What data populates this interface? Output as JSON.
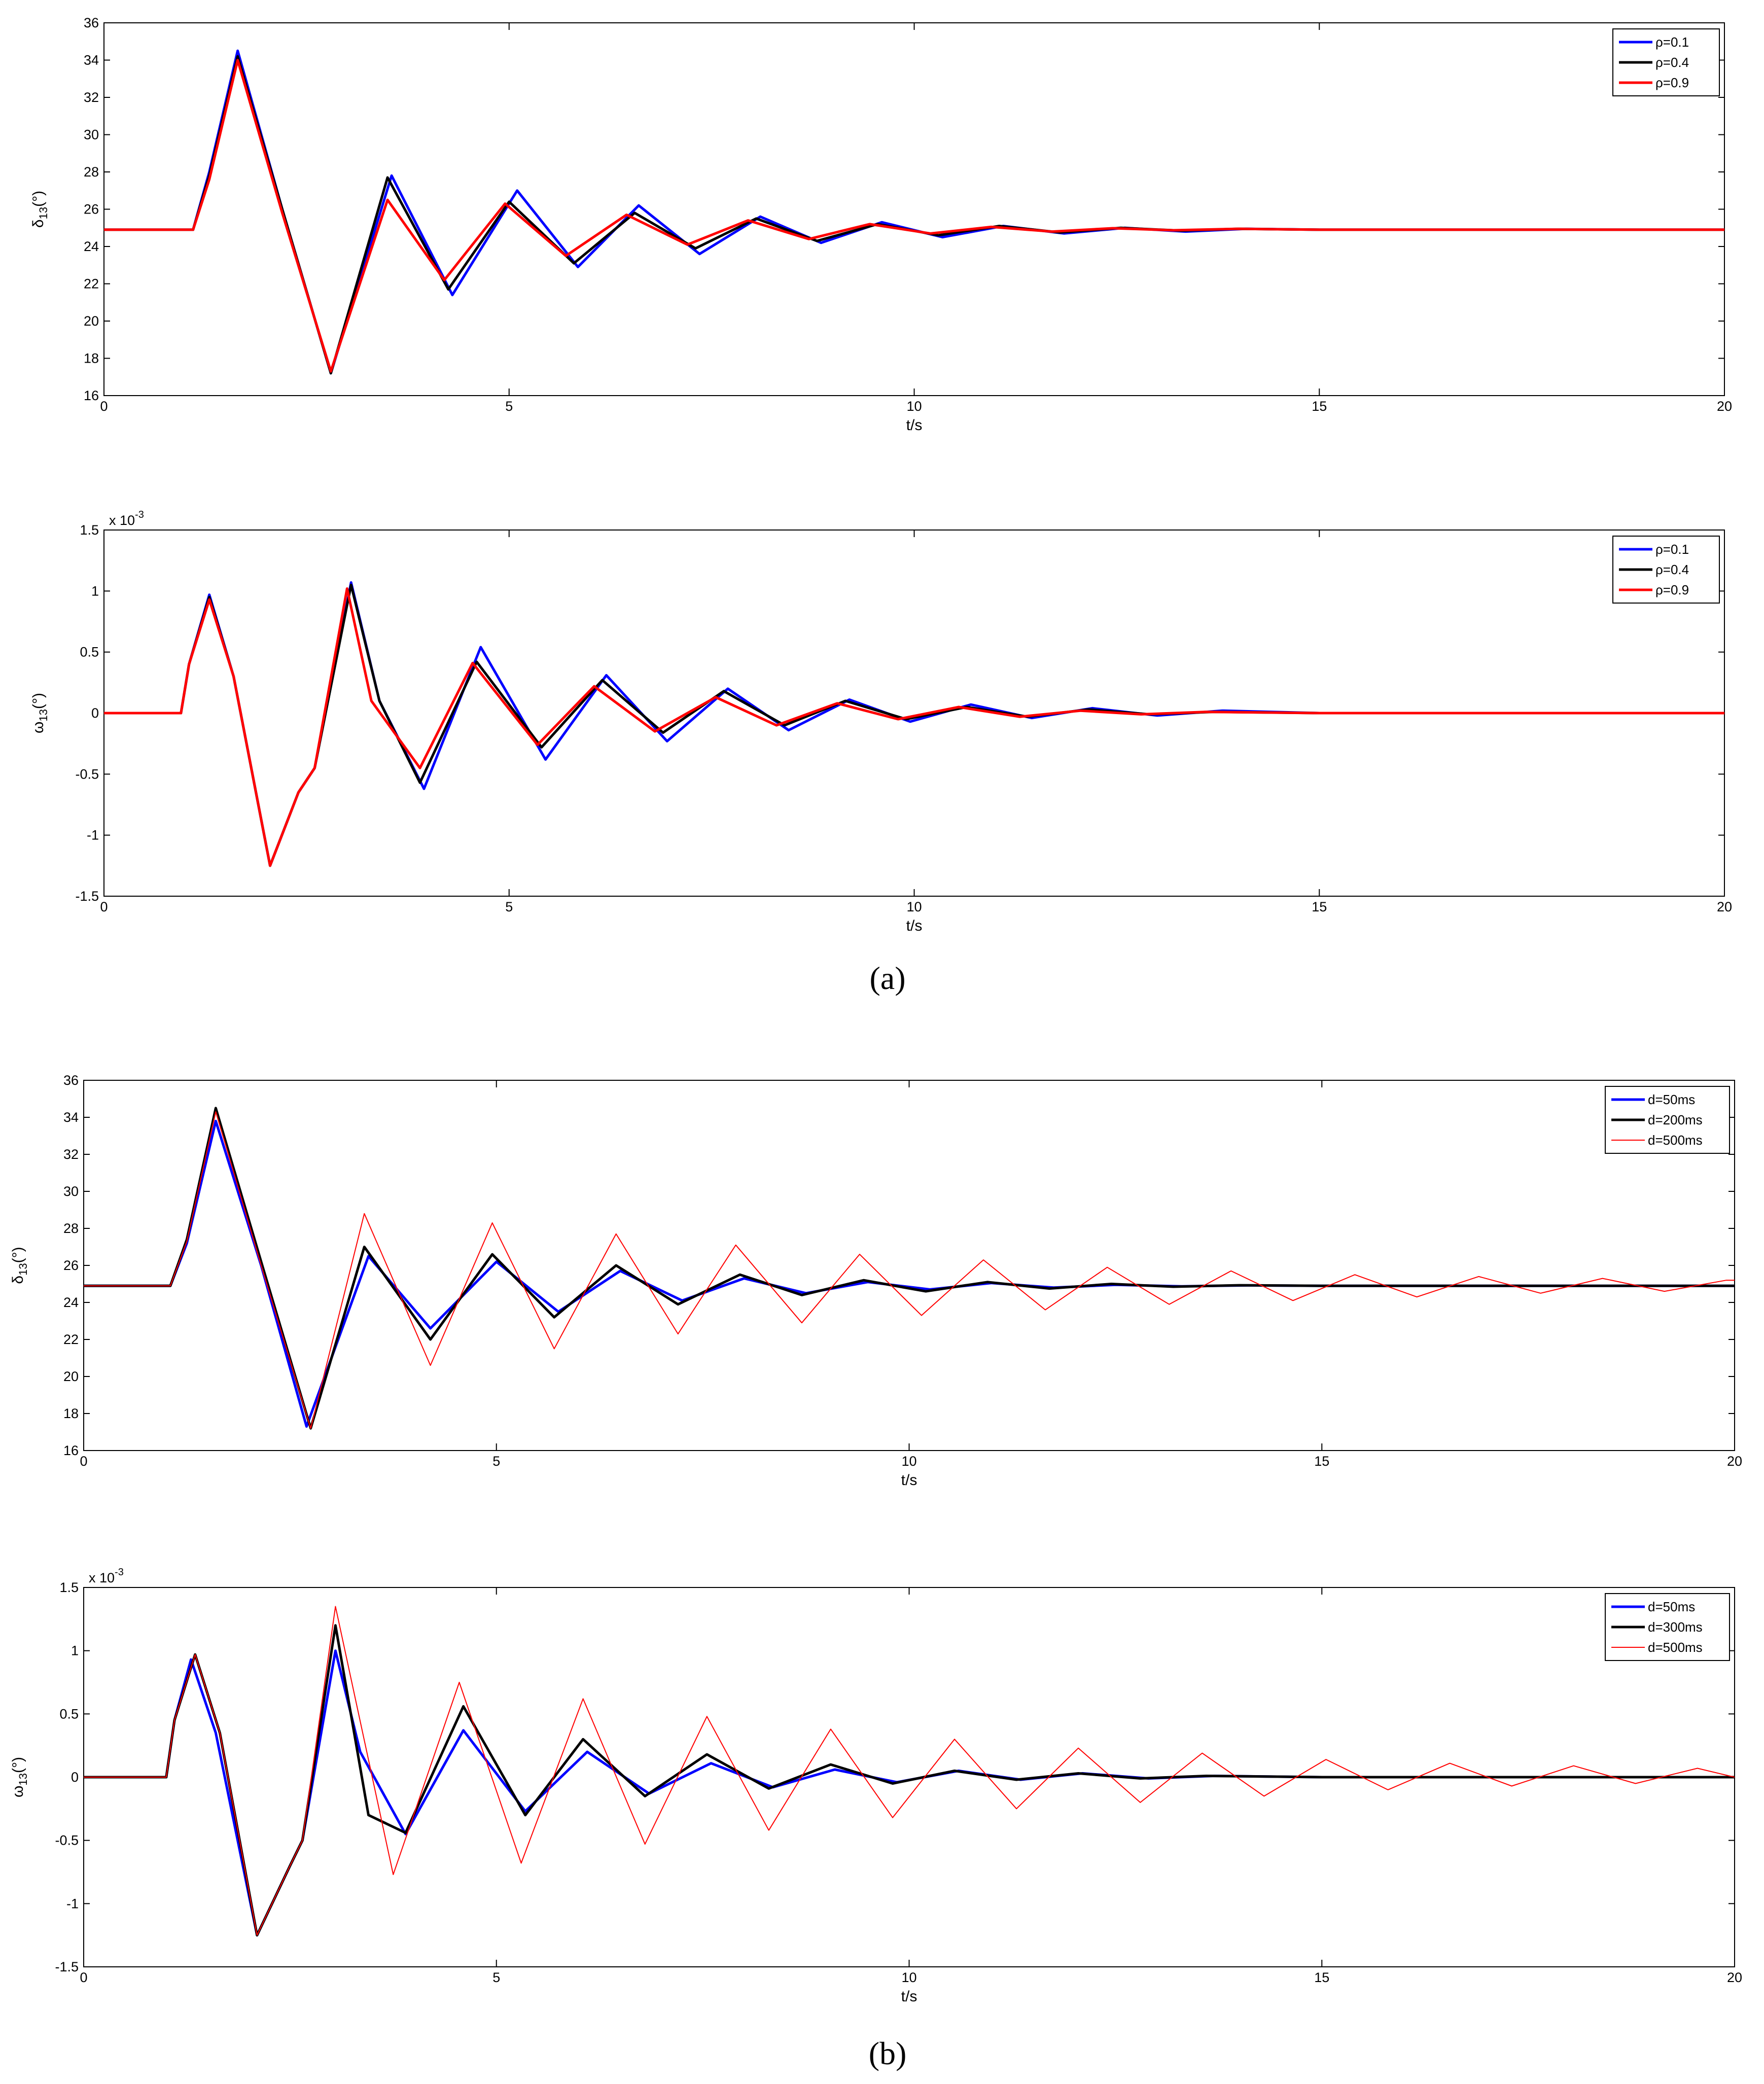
{
  "figure": {
    "label_a": "(a)",
    "label_b": "(b)"
  },
  "colors": {
    "blue": "#0000ff",
    "black": "#000000",
    "red": "#ff0000",
    "frame": "#000000",
    "bg": "#ffffff"
  },
  "chart_data": [
    {
      "id": "a1",
      "type": "line",
      "title": "",
      "xlabel": "t/s",
      "ylabel": "δ13(°)",
      "ylabel_main": "δ",
      "ylabel_sub": "13",
      "ylabel_unit": "(°)",
      "scale_note": "",
      "xlim": [
        0,
        20
      ],
      "ylim": [
        16,
        36
      ],
      "xticks": [
        0,
        5,
        10,
        15,
        20
      ],
      "xtick_labels": [
        "0",
        "5",
        "10",
        "15",
        "20"
      ],
      "yticks": [
        16,
        18,
        20,
        22,
        24,
        26,
        28,
        30,
        32,
        34,
        36
      ],
      "ytick_labels": [
        "16",
        "18",
        "20",
        "22",
        "24",
        "26",
        "28",
        "30",
        "32",
        "34",
        "36"
      ],
      "legend": "top-right",
      "series": [
        {
          "name": "ρ=0.1",
          "color": "blue",
          "style": "thick",
          "x": [
            0,
            1.1,
            1.3,
            1.65,
            2.2,
            2.8,
            3.55,
            4.3,
            5.1,
            5.85,
            6.6,
            7.35,
            8.1,
            8.85,
            9.6,
            10.35,
            11.1,
            11.85,
            12.6,
            13.35,
            14.1,
            15.0,
            20
          ],
          "y": [
            24.9,
            24.9,
            28.0,
            34.5,
            26.0,
            17.2,
            27.8,
            21.4,
            27.0,
            22.9,
            26.2,
            23.6,
            25.6,
            24.2,
            25.3,
            24.5,
            25.1,
            24.7,
            25.0,
            24.8,
            24.95,
            24.9,
            24.9
          ]
        },
        {
          "name": "ρ=0.4",
          "color": "black",
          "style": "thick",
          "x": [
            0,
            1.1,
            1.3,
            1.65,
            2.2,
            2.8,
            3.5,
            4.25,
            5.0,
            5.8,
            6.55,
            7.3,
            8.05,
            8.8,
            9.55,
            10.3,
            11.05,
            11.8,
            12.55,
            13.3,
            14.0,
            15.0,
            20
          ],
          "y": [
            24.9,
            24.9,
            27.8,
            34.2,
            26.0,
            17.2,
            27.7,
            21.7,
            26.4,
            23.1,
            25.8,
            23.9,
            25.5,
            24.3,
            25.2,
            24.6,
            25.1,
            24.75,
            25.0,
            24.85,
            24.95,
            24.9,
            24.9
          ]
        },
        {
          "name": "ρ=0.9",
          "color": "red",
          "style": "thick",
          "x": [
            0,
            1.1,
            1.3,
            1.65,
            2.2,
            2.8,
            3.5,
            4.2,
            4.95,
            5.7,
            6.45,
            7.2,
            7.95,
            8.7,
            9.45,
            10.2,
            10.95,
            11.7,
            12.45,
            13.2,
            14.0,
            15.0,
            20
          ],
          "y": [
            24.9,
            24.9,
            27.6,
            34.0,
            25.8,
            17.3,
            26.5,
            22.2,
            26.3,
            23.5,
            25.7,
            24.1,
            25.4,
            24.4,
            25.2,
            24.7,
            25.05,
            24.8,
            24.98,
            24.87,
            24.95,
            24.9,
            24.9
          ]
        }
      ]
    },
    {
      "id": "a2",
      "type": "line",
      "title": "",
      "xlabel": "t/s",
      "ylabel": "ω13(°)",
      "ylabel_main": "ω",
      "ylabel_sub": "13",
      "ylabel_unit": "(°)",
      "scale_note": "x 10",
      "scale_exp": "-3",
      "xlim": [
        0,
        20
      ],
      "ylim": [
        -1.5,
        1.5
      ],
      "xticks": [
        0,
        5,
        10,
        15,
        20
      ],
      "xtick_labels": [
        "0",
        "5",
        "10",
        "15",
        "20"
      ],
      "yticks": [
        -1.5,
        -1,
        -0.5,
        0,
        0.5,
        1,
        1.5
      ],
      "ytick_labels": [
        "-1.5",
        "-1",
        "-0.5",
        "0",
        "0.5",
        "1",
        "1.5"
      ],
      "legend": "top-right",
      "series": [
        {
          "name": "ρ=0.1",
          "color": "blue",
          "style": "thick",
          "x": [
            0,
            0.95,
            1.05,
            1.3,
            1.6,
            2.05,
            2.4,
            2.6,
            3.05,
            3.4,
            3.95,
            4.65,
            5.45,
            6.2,
            6.95,
            7.7,
            8.45,
            9.2,
            9.95,
            10.7,
            11.45,
            12.2,
            13.0,
            13.8,
            15.0,
            20
          ],
          "y": [
            0,
            0,
            0.4,
            0.97,
            0.3,
            -1.25,
            -0.65,
            -0.45,
            1.07,
            0.1,
            -0.62,
            0.54,
            -0.38,
            0.31,
            -0.23,
            0.2,
            -0.14,
            0.11,
            -0.07,
            0.07,
            -0.04,
            0.04,
            -0.02,
            0.02,
            0,
            0
          ]
        },
        {
          "name": "ρ=0.4",
          "color": "black",
          "style": "thick",
          "x": [
            0,
            0.95,
            1.05,
            1.3,
            1.6,
            2.05,
            2.4,
            2.6,
            3.05,
            3.4,
            3.9,
            4.6,
            5.4,
            6.15,
            6.9,
            7.65,
            8.4,
            9.15,
            9.9,
            10.65,
            11.4,
            12.15,
            12.9,
            13.7,
            15.0,
            20
          ],
          "y": [
            0,
            0,
            0.4,
            0.95,
            0.3,
            -1.25,
            -0.65,
            -0.45,
            1.05,
            0.1,
            -0.57,
            0.42,
            -0.28,
            0.27,
            -0.16,
            0.18,
            -0.1,
            0.1,
            -0.05,
            0.05,
            -0.03,
            0.03,
            -0.01,
            0.01,
            0,
            0
          ]
        },
        {
          "name": "ρ=0.9",
          "color": "red",
          "style": "thick",
          "x": [
            0,
            0.95,
            1.05,
            1.3,
            1.6,
            2.05,
            2.4,
            2.6,
            3.0,
            3.3,
            3.9,
            4.55,
            5.35,
            6.05,
            6.8,
            7.55,
            8.3,
            9.05,
            9.8,
            10.55,
            11.3,
            12.05,
            12.8,
            13.6,
            15.0,
            20
          ],
          "y": [
            0,
            0,
            0.4,
            0.93,
            0.3,
            -1.25,
            -0.65,
            -0.45,
            1.02,
            0.1,
            -0.45,
            0.41,
            -0.26,
            0.22,
            -0.15,
            0.13,
            -0.1,
            0.08,
            -0.05,
            0.05,
            -0.03,
            0.02,
            -0.01,
            0.01,
            0,
            0
          ]
        }
      ]
    },
    {
      "id": "b1",
      "type": "line",
      "title": "",
      "xlabel": "t/s",
      "ylabel": "δ13(°)",
      "ylabel_main": "δ",
      "ylabel_sub": "13",
      "ylabel_unit": "(°)",
      "scale_note": "",
      "xlim": [
        0,
        20
      ],
      "ylim": [
        16,
        36
      ],
      "xticks": [
        0,
        5,
        10,
        15,
        20
      ],
      "xtick_labels": [
        "0",
        "5",
        "10",
        "15",
        "20"
      ],
      "yticks": [
        16,
        18,
        20,
        22,
        24,
        26,
        28,
        30,
        32,
        34,
        36
      ],
      "ytick_labels": [
        "16",
        "18",
        "20",
        "22",
        "24",
        "26",
        "28",
        "30",
        "32",
        "34",
        "36"
      ],
      "legend": "top-right",
      "series": [
        {
          "name": "d=50ms",
          "color": "blue",
          "style": "thick",
          "x": [
            0,
            1.05,
            1.25,
            1.6,
            2.15,
            2.7,
            3.45,
            4.2,
            5.0,
            5.75,
            6.5,
            7.25,
            8.0,
            8.75,
            9.5,
            10.25,
            11.0,
            11.75,
            12.5,
            13.3,
            14.1,
            15.0,
            20
          ],
          "y": [
            24.9,
            24.9,
            27.2,
            33.8,
            26.0,
            17.3,
            26.5,
            22.6,
            26.2,
            23.5,
            25.7,
            24.1,
            25.3,
            24.5,
            25.1,
            24.7,
            25.05,
            24.8,
            24.95,
            24.87,
            24.92,
            24.9,
            24.9
          ]
        },
        {
          "name": "d=200ms",
          "color": "black",
          "style": "thick",
          "x": [
            0,
            1.05,
            1.25,
            1.6,
            2.15,
            2.75,
            3.4,
            4.2,
            4.95,
            5.7,
            6.45,
            7.2,
            7.95,
            8.7,
            9.45,
            10.2,
            10.95,
            11.7,
            12.45,
            13.2,
            14.0,
            15.0,
            20
          ],
          "y": [
            24.9,
            24.9,
            27.4,
            34.5,
            26.2,
            17.2,
            27.0,
            22.0,
            26.6,
            23.2,
            26.0,
            23.9,
            25.5,
            24.4,
            25.2,
            24.6,
            25.1,
            24.75,
            25.0,
            24.85,
            24.93,
            24.9,
            24.9
          ]
        },
        {
          "name": "d=500ms",
          "color": "red",
          "style": "thin",
          "x": [
            0,
            1.05,
            1.25,
            1.6,
            2.15,
            2.75,
            3.4,
            4.2,
            4.95,
            5.7,
            6.45,
            7.2,
            7.9,
            8.7,
            9.4,
            10.15,
            10.9,
            11.65,
            12.4,
            13.15,
            13.9,
            14.65,
            15.4,
            16.15,
            16.9,
            17.65,
            18.4,
            19.15,
            19.9,
            20
          ],
          "y": [
            24.9,
            24.9,
            27.3,
            34.3,
            26.0,
            17.2,
            28.8,
            20.6,
            28.3,
            21.5,
            27.7,
            22.3,
            27.1,
            22.9,
            26.6,
            23.3,
            26.3,
            23.6,
            25.9,
            23.9,
            25.7,
            24.1,
            25.5,
            24.3,
            25.4,
            24.5,
            25.3,
            24.6,
            25.2,
            25.2
          ]
        }
      ]
    },
    {
      "id": "b2",
      "type": "line",
      "title": "",
      "xlabel": "t/s",
      "ylabel": "ω13(°)",
      "ylabel_main": "ω",
      "ylabel_sub": "13",
      "ylabel_unit": "(°)",
      "scale_note": "x 10",
      "scale_exp": "-3",
      "xlim": [
        0,
        20
      ],
      "ylim": [
        -1.5,
        1.5
      ],
      "xticks": [
        0,
        5,
        10,
        15,
        20
      ],
      "xtick_labels": [
        "0",
        "5",
        "10",
        "15",
        "20"
      ],
      "yticks": [
        -1.5,
        -1,
        -0.5,
        0,
        0.5,
        1,
        1.5
      ],
      "ytick_labels": [
        "-1.5",
        "-1",
        "-0.5",
        "0",
        "0.5",
        "1",
        "1.5"
      ],
      "legend": "top-right",
      "series": [
        {
          "name": "d=50ms",
          "color": "blue",
          "style": "thick",
          "x": [
            0,
            1.0,
            1.1,
            1.3,
            1.6,
            2.1,
            2.5,
            2.65,
            3.05,
            3.35,
            3.9,
            4.6,
            5.35,
            6.1,
            6.85,
            7.6,
            8.35,
            9.1,
            9.85,
            10.6,
            11.35,
            12.1,
            12.9,
            13.7,
            15.0,
            20
          ],
          "y": [
            0,
            0,
            0.45,
            0.93,
            0.35,
            -1.25,
            -0.7,
            -0.5,
            1.0,
            0.2,
            -0.45,
            0.37,
            -0.27,
            0.2,
            -0.13,
            0.11,
            -0.08,
            0.06,
            -0.04,
            0.05,
            -0.02,
            0.03,
            -0.01,
            0.01,
            0,
            0
          ]
        },
        {
          "name": "d=300ms",
          "color": "black",
          "style": "thick",
          "x": [
            0,
            1.0,
            1.1,
            1.35,
            1.65,
            2.1,
            2.5,
            2.65,
            3.05,
            3.45,
            3.9,
            4.6,
            5.35,
            6.05,
            6.8,
            7.55,
            8.3,
            9.05,
            9.8,
            10.55,
            11.3,
            12.05,
            12.8,
            13.6,
            15.0,
            20
          ],
          "y": [
            0,
            0,
            0.45,
            0.97,
            0.35,
            -1.25,
            -0.7,
            -0.5,
            1.2,
            -0.3,
            -0.44,
            0.56,
            -0.3,
            0.3,
            -0.15,
            0.18,
            -0.09,
            0.1,
            -0.05,
            0.05,
            -0.02,
            0.03,
            -0.01,
            0.01,
            0,
            0
          ]
        },
        {
          "name": "d=500ms",
          "color": "red",
          "style": "thin",
          "x": [
            0,
            1.0,
            1.1,
            1.35,
            1.65,
            2.1,
            2.5,
            2.65,
            3.05,
            3.75,
            4.55,
            5.3,
            6.05,
            6.8,
            7.55,
            8.3,
            9.05,
            9.8,
            10.55,
            11.3,
            12.05,
            12.8,
            13.55,
            14.3,
            15.05,
            15.8,
            16.55,
            17.3,
            18.05,
            18.8,
            19.55,
            20
          ],
          "y": [
            0,
            0,
            0.45,
            0.97,
            0.35,
            -1.25,
            -0.7,
            -0.5,
            1.35,
            -0.77,
            0.75,
            -0.68,
            0.62,
            -0.53,
            0.48,
            -0.42,
            0.38,
            -0.32,
            0.3,
            -0.25,
            0.23,
            -0.2,
            0.19,
            -0.15,
            0.14,
            -0.1,
            0.11,
            -0.07,
            0.09,
            -0.05,
            0.07,
            0
          ]
        }
      ]
    }
  ]
}
